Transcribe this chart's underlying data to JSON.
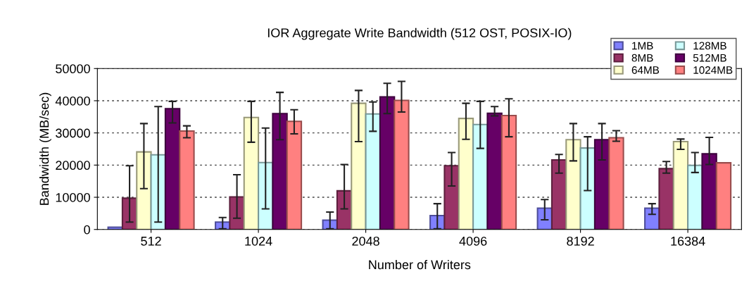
{
  "chart_data": {
    "type": "bar",
    "title": "IOR Aggregate Write Bandwidth (512 OST, POSIX-IO)",
    "xlabel": "Number of Writers",
    "ylabel": "Bandwidth (MB/sec)",
    "categories": [
      "512",
      "1024",
      "2048",
      "4096",
      "8192",
      "16384"
    ],
    "series": [
      {
        "name": "1MB",
        "color": "#8080ff",
        "values": [
          700,
          2300,
          2900,
          4300,
          6600,
          6600
        ],
        "errors": [
          null,
          [
            200,
            3700
          ],
          [
            200,
            5400
          ],
          [
            200,
            8000
          ],
          [
            3000,
            9300
          ],
          [
            4700,
            8000
          ]
        ]
      },
      {
        "name": "8MB",
        "color": "#993366",
        "values": [
          9700,
          10100,
          12000,
          19800,
          21600,
          18900
        ],
        "errors": [
          [
            2300,
            19800
          ],
          [
            3500,
            17000
          ],
          [
            6400,
            20200
          ],
          [
            13500,
            23900
          ],
          [
            17500,
            23300
          ],
          [
            17500,
            21100
          ]
        ]
      },
      {
        "name": "64MB",
        "color": "#ffffcc",
        "values": [
          24100,
          34800,
          39200,
          34500,
          27900,
          27300
        ],
        "errors": [
          [
            12700,
            32900
          ],
          [
            27100,
            39800
          ],
          [
            27300,
            43200
          ],
          [
            28000,
            39200
          ],
          [
            21300,
            32900
          ],
          [
            24900,
            28100
          ]
        ]
      },
      {
        "name": "128MB",
        "color": "#ccffff",
        "values": [
          23200,
          20800,
          35900,
          32600,
          25300,
          19900
        ],
        "errors": [
          [
            2300,
            38200
          ],
          [
            6400,
            31500
          ],
          [
            30500,
            39600
          ],
          [
            25200,
            39800
          ],
          [
            12100,
            28800
          ],
          [
            17700,
            23900
          ]
        ]
      },
      {
        "name": "512MB",
        "color": "#660066",
        "values": [
          37500,
          36000,
          41200,
          36100,
          27900,
          23500
        ],
        "errors": [
          [
            33100,
            39800
          ],
          [
            27900,
            42600
          ],
          [
            36000,
            45400
          ],
          [
            35300,
            38200
          ],
          [
            21600,
            32900
          ],
          [
            20200,
            28600
          ]
        ]
      },
      {
        "name": "1024MB",
        "color": "#ff8080",
        "values": [
          30600,
          33600,
          40100,
          35400,
          28500,
          20700
        ],
        "errors": [
          [
            28500,
            32200
          ],
          [
            29700,
            37200
          ],
          [
            36500,
            46000
          ],
          [
            28800,
            40600
          ],
          [
            27400,
            30700
          ],
          null
        ]
      }
    ],
    "ylim": [
      0,
      50000
    ],
    "yticks": [
      0,
      10000,
      20000,
      30000,
      40000,
      50000
    ],
    "grid": "y",
    "legend": "top right"
  }
}
